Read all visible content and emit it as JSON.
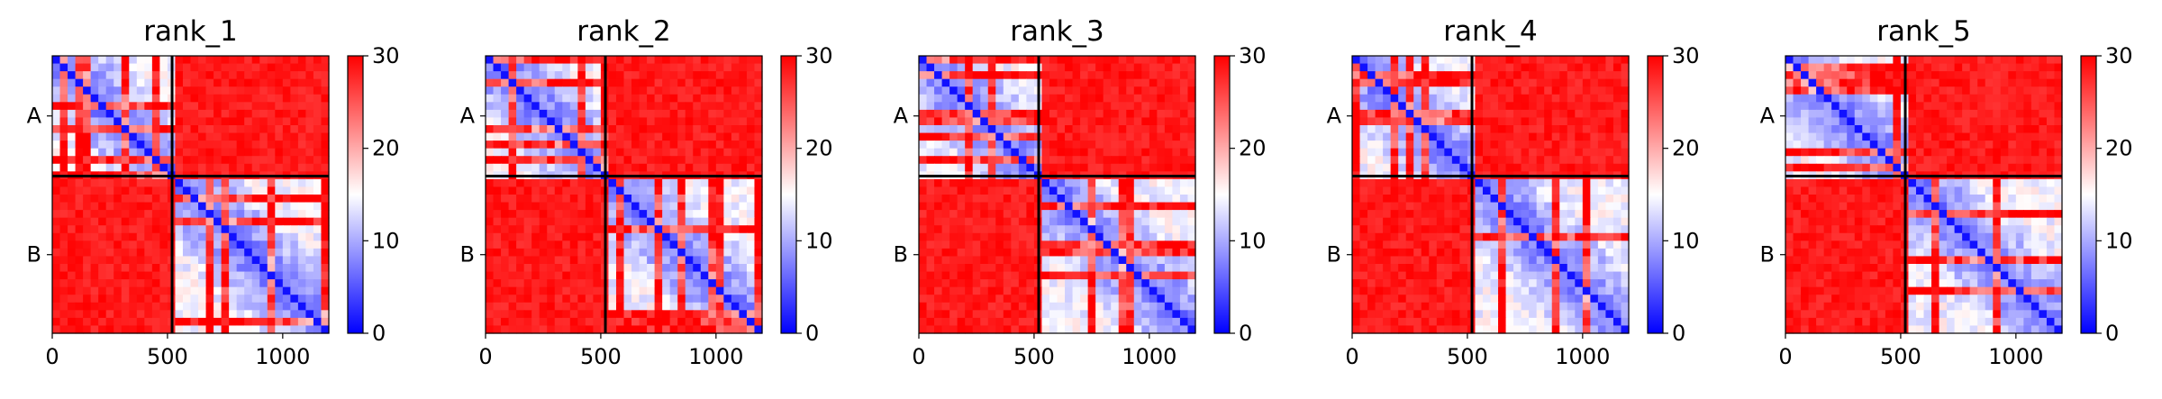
{
  "colors": {
    "low": "#0000ff",
    "mid": "#ffffff",
    "high": "#ff0000",
    "divider": "#000000"
  },
  "chart_data": [
    {
      "type": "heatmap",
      "title": "rank_1",
      "xlim": [
        0,
        1200
      ],
      "ylim": [
        1200,
        0
      ],
      "x_ticks": [
        0,
        500,
        1000
      ],
      "x_tick_labels": [
        "0",
        "500",
        "1000"
      ],
      "y_ticks": [
        {
          "label": "A",
          "value": 260
        },
        {
          "label": "B",
          "value": 860
        }
      ],
      "chain_boundary": 520,
      "colorbar": {
        "min": 0,
        "max": 30,
        "ticks": [
          0,
          10,
          20,
          30
        ],
        "tick_labels": [
          "0",
          "10",
          "20",
          "30"
        ],
        "cmap": "bwr"
      }
    },
    {
      "type": "heatmap",
      "title": "rank_2",
      "xlim": [
        0,
        1200
      ],
      "ylim": [
        1200,
        0
      ],
      "x_ticks": [
        0,
        500,
        1000
      ],
      "x_tick_labels": [
        "0",
        "500",
        "1000"
      ],
      "y_ticks": [
        {
          "label": "A",
          "value": 260
        },
        {
          "label": "B",
          "value": 860
        }
      ],
      "chain_boundary": 520,
      "colorbar": {
        "min": 0,
        "max": 30,
        "ticks": [
          0,
          10,
          20,
          30
        ],
        "tick_labels": [
          "0",
          "10",
          "20",
          "30"
        ],
        "cmap": "bwr"
      }
    },
    {
      "type": "heatmap",
      "title": "rank_3",
      "xlim": [
        0,
        1200
      ],
      "ylim": [
        1200,
        0
      ],
      "x_ticks": [
        0,
        500,
        1000
      ],
      "x_tick_labels": [
        "0",
        "500",
        "1000"
      ],
      "y_ticks": [
        {
          "label": "A",
          "value": 260
        },
        {
          "label": "B",
          "value": 860
        }
      ],
      "chain_boundary": 520,
      "colorbar": {
        "min": 0,
        "max": 30,
        "ticks": [
          0,
          10,
          20,
          30
        ],
        "tick_labels": [
          "0",
          "10",
          "20",
          "30"
        ],
        "cmap": "bwr"
      }
    },
    {
      "type": "heatmap",
      "title": "rank_4",
      "xlim": [
        0,
        1200
      ],
      "ylim": [
        1200,
        0
      ],
      "x_ticks": [
        0,
        500,
        1000
      ],
      "x_tick_labels": [
        "0",
        "500",
        "1000"
      ],
      "y_ticks": [
        {
          "label": "A",
          "value": 260
        },
        {
          "label": "B",
          "value": 860
        }
      ],
      "chain_boundary": 520,
      "colorbar": {
        "min": 0,
        "max": 30,
        "ticks": [
          0,
          10,
          20,
          30
        ],
        "tick_labels": [
          "0",
          "10",
          "20",
          "30"
        ],
        "cmap": "bwr"
      }
    },
    {
      "type": "heatmap",
      "title": "rank_5",
      "xlim": [
        0,
        1200
      ],
      "ylim": [
        1200,
        0
      ],
      "x_ticks": [
        0,
        500,
        1000
      ],
      "x_tick_labels": [
        "0",
        "500",
        "1000"
      ],
      "y_ticks": [
        {
          "label": "A",
          "value": 260
        },
        {
          "label": "B",
          "value": 860
        }
      ],
      "chain_boundary": 520,
      "colorbar": {
        "min": 0,
        "max": 30,
        "ticks": [
          0,
          10,
          20,
          30
        ],
        "tick_labels": [
          "0",
          "10",
          "20",
          "30"
        ],
        "cmap": "bwr"
      }
    }
  ]
}
